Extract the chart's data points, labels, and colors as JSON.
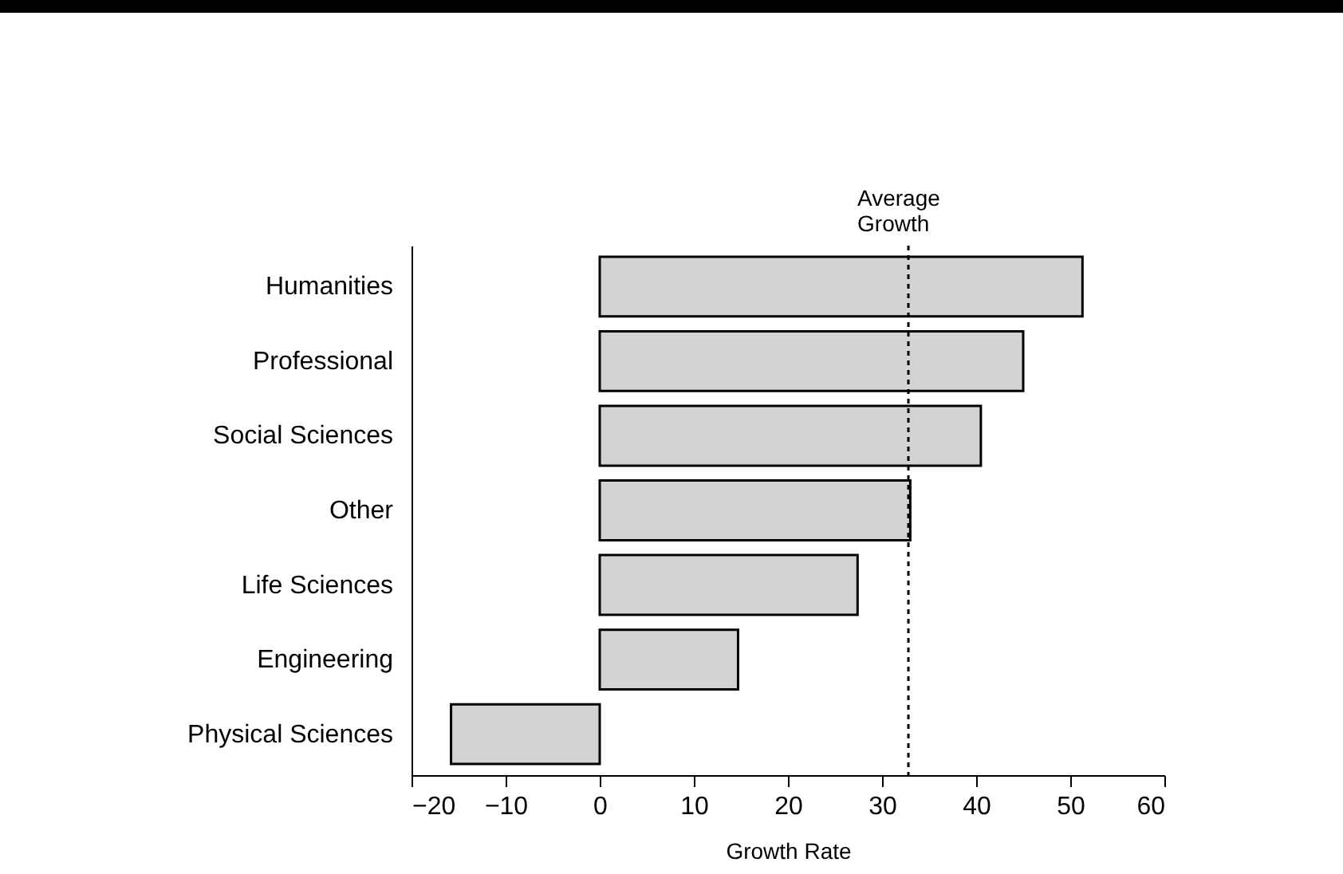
{
  "chart_data": {
    "type": "bar",
    "orientation": "horizontal",
    "xlabel": "Growth Rate",
    "categories": [
      "Humanities",
      "Professional",
      "Social Sciences",
      "Other",
      "Life Sciences",
      "Engineering",
      "Physical Sciences"
    ],
    "values": [
      51.3,
      45,
      40.5,
      33,
      27.4,
      14.7,
      -15.8
    ],
    "color": "#d3d3d3",
    "xlim": [
      -20,
      60
    ],
    "xticks": [
      -20,
      -10,
      0,
      10,
      20,
      30,
      40,
      50,
      60
    ],
    "grid": false,
    "ref_lines": [
      {
        "axis": "x",
        "value": 32.8,
        "label": "Average Growth",
        "line_style": "dotted",
        "color": "#000000"
      }
    ]
  }
}
